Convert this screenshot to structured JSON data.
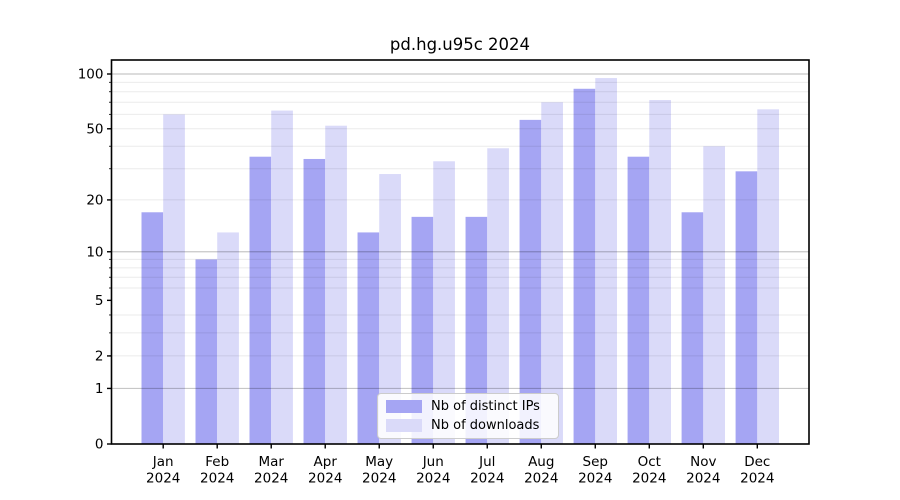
{
  "title": "pd.hg.u95c 2024",
  "chart_data": {
    "type": "bar",
    "categories": [
      "Jan",
      "Feb",
      "Mar",
      "Apr",
      "May",
      "Jun",
      "Jul",
      "Aug",
      "Sep",
      "Oct",
      "Nov",
      "Dec"
    ],
    "year": "2024",
    "series": [
      {
        "name": "Nb of distinct IPs",
        "color": "#a5a5f3",
        "values": [
          17,
          9,
          35,
          34,
          13,
          16,
          16,
          56,
          83,
          35,
          17,
          29
        ]
      },
      {
        "name": "Nb of downloads",
        "color": "#dadaf9",
        "values": [
          60,
          13,
          63,
          52,
          28,
          33,
          39,
          70,
          95,
          72,
          40,
          64
        ]
      }
    ],
    "yticks": [
      0,
      1,
      2,
      5,
      10,
      20,
      50,
      100
    ],
    "y_major_gridlines": [
      1,
      10,
      100
    ],
    "y_minor_gridlines": [
      2,
      3,
      4,
      6,
      7,
      8,
      9,
      20,
      30,
      40,
      50,
      60,
      70,
      80,
      90
    ],
    "scale": "log10(1+x)",
    "ylim": [
      0,
      120
    ],
    "xlabel": "",
    "ylabel": "",
    "grid": true,
    "legend_position": "bottom-center",
    "colors": {
      "major_grid": "rgba(0,0,0,0.22)",
      "minor_grid": "rgba(0,0,0,0.08)",
      "spine": "#000000",
      "background": "#ffffff",
      "text": "#000000"
    }
  }
}
